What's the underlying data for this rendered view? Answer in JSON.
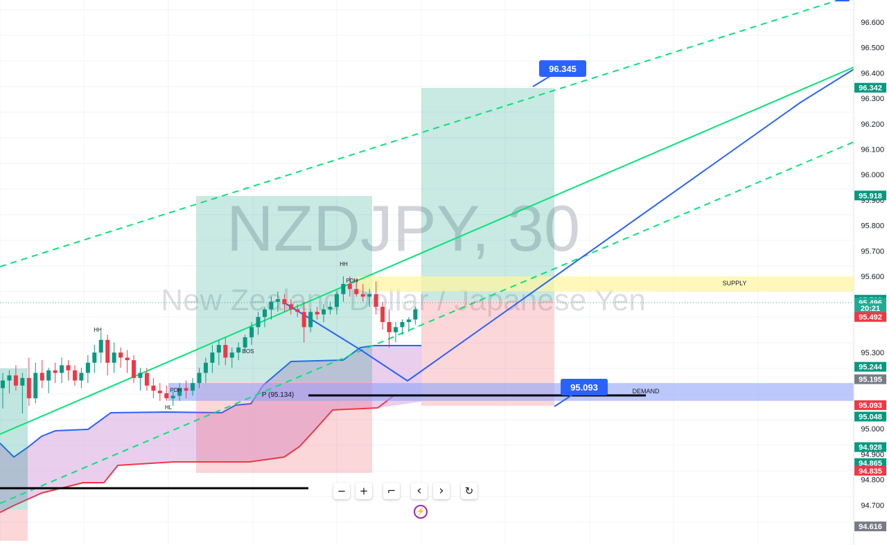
{
  "watermark": {
    "symbol": "NZDJPY, 30",
    "description": "New Zealand Dollar / Japanese Yen"
  },
  "chart_data": {
    "type": "candlestick",
    "symbol": "NZDJPY",
    "timeframe": "30",
    "ylim": [
      94.616,
      96.66
    ],
    "y_ticks": [
      "96.600",
      "96.500",
      "96.400",
      "96.300",
      "96.200",
      "96.100",
      "96.000",
      "95.900",
      "95.800",
      "95.700",
      "95.600",
      "95.300",
      "95.000",
      "94.900",
      "94.800",
      "94.700"
    ],
    "price_tags": [
      {
        "label": "96.342",
        "value": 96.342,
        "color": "#089981"
      },
      {
        "label": "95.918",
        "value": 95.918,
        "color": "#089981"
      },
      {
        "label": "95.508",
        "value": 95.508,
        "color": "#089981"
      },
      {
        "label": "95.496",
        "value": 95.496,
        "color": "#22ab94"
      },
      {
        "label": "20:21",
        "value": 95.474,
        "color": "#22ab94"
      },
      {
        "label": "95.492",
        "value": 95.44,
        "color": "#f23645"
      },
      {
        "label": "95.244",
        "value": 95.244,
        "color": "#089981"
      },
      {
        "label": "95.195",
        "value": 95.195,
        "color": "#787b86"
      },
      {
        "label": "95.093",
        "value": 95.093,
        "color": "#f23645"
      },
      {
        "label": "95.048",
        "value": 95.048,
        "color": "#089981"
      },
      {
        "label": "94.928",
        "value": 94.928,
        "color": "#089981"
      },
      {
        "label": "94.865",
        "value": 94.865,
        "color": "#089981"
      },
      {
        "label": "94.835",
        "value": 94.835,
        "color": "#f23645"
      },
      {
        "label": "94.616",
        "value": 94.616,
        "color": "#787b86"
      }
    ],
    "zones": [
      {
        "label": "SUPPLY",
        "from": 95.54,
        "to": 95.6,
        "color": "#fff59d"
      },
      {
        "label": "DEMAND",
        "from": 95.11,
        "to": 95.18,
        "color": "#90a4f8"
      }
    ],
    "callouts": [
      {
        "label": "96.345",
        "value": 96.345
      },
      {
        "label": "95.093",
        "value": 95.093
      }
    ],
    "annotations": [
      {
        "text": "HH",
        "value": 95.76
      },
      {
        "text": "HH",
        "value": 95.35
      },
      {
        "text": "PDH",
        "value": 95.6
      },
      {
        "text": "BOS",
        "value": 95.29
      },
      {
        "text": "PDH",
        "value": 95.16
      },
      {
        "text": "HL",
        "value": 95.09
      },
      {
        "text": "P (95.134)",
        "value": 95.134
      }
    ],
    "candles": [
      {
        "o": 95.16,
        "h": 95.22,
        "l": 95.08,
        "c": 95.19
      },
      {
        "o": 95.19,
        "h": 95.23,
        "l": 95.14,
        "c": 95.21
      },
      {
        "o": 95.21,
        "h": 95.25,
        "l": 95.15,
        "c": 95.17
      },
      {
        "o": 95.17,
        "h": 95.22,
        "l": 95.06,
        "c": 95.2
      },
      {
        "o": 95.2,
        "h": 95.28,
        "l": 95.09,
        "c": 95.12
      },
      {
        "o": 95.12,
        "h": 95.26,
        "l": 95.1,
        "c": 95.22
      },
      {
        "o": 95.22,
        "h": 95.27,
        "l": 95.16,
        "c": 95.19
      },
      {
        "o": 95.19,
        "h": 95.24,
        "l": 95.14,
        "c": 95.23
      },
      {
        "o": 95.23,
        "h": 95.26,
        "l": 95.18,
        "c": 95.22
      },
      {
        "o": 95.22,
        "h": 95.28,
        "l": 95.18,
        "c": 95.25
      },
      {
        "o": 95.25,
        "h": 95.27,
        "l": 95.19,
        "c": 95.23
      },
      {
        "o": 95.23,
        "h": 95.25,
        "l": 95.17,
        "c": 95.19
      },
      {
        "o": 95.19,
        "h": 95.24,
        "l": 95.16,
        "c": 95.22
      },
      {
        "o": 95.22,
        "h": 95.29,
        "l": 95.18,
        "c": 95.26
      },
      {
        "o": 95.26,
        "h": 95.33,
        "l": 95.22,
        "c": 95.3
      },
      {
        "o": 95.3,
        "h": 95.38,
        "l": 95.26,
        "c": 95.35
      },
      {
        "o": 95.35,
        "h": 95.37,
        "l": 95.21,
        "c": 95.26
      },
      {
        "o": 95.26,
        "h": 95.34,
        "l": 95.22,
        "c": 95.3
      },
      {
        "o": 95.3,
        "h": 95.32,
        "l": 95.24,
        "c": 95.28
      },
      {
        "o": 95.28,
        "h": 95.31,
        "l": 95.22,
        "c": 95.27
      },
      {
        "o": 95.27,
        "h": 95.29,
        "l": 95.18,
        "c": 95.2
      },
      {
        "o": 95.2,
        "h": 95.24,
        "l": 95.15,
        "c": 95.22
      },
      {
        "o": 95.22,
        "h": 95.24,
        "l": 95.15,
        "c": 95.17
      },
      {
        "o": 95.17,
        "h": 95.2,
        "l": 95.12,
        "c": 95.15
      },
      {
        "o": 95.15,
        "h": 95.18,
        "l": 95.11,
        "c": 95.14
      },
      {
        "o": 95.14,
        "h": 95.17,
        "l": 95.11,
        "c": 95.12
      },
      {
        "o": 95.12,
        "h": 95.15,
        "l": 95.09,
        "c": 95.13
      },
      {
        "o": 95.13,
        "h": 95.18,
        "l": 95.11,
        "c": 95.16
      },
      {
        "o": 95.16,
        "h": 95.19,
        "l": 95.12,
        "c": 95.15
      },
      {
        "o": 95.15,
        "h": 95.2,
        "l": 95.13,
        "c": 95.18
      },
      {
        "o": 95.18,
        "h": 95.24,
        "l": 95.16,
        "c": 95.22
      },
      {
        "o": 95.22,
        "h": 95.28,
        "l": 95.18,
        "c": 95.26
      },
      {
        "o": 95.26,
        "h": 95.33,
        "l": 95.22,
        "c": 95.3
      },
      {
        "o": 95.3,
        "h": 95.35,
        "l": 95.25,
        "c": 95.33
      },
      {
        "o": 95.33,
        "h": 95.36,
        "l": 95.25,
        "c": 95.28
      },
      {
        "o": 95.28,
        "h": 95.32,
        "l": 95.24,
        "c": 95.3
      },
      {
        "o": 95.3,
        "h": 95.34,
        "l": 95.27,
        "c": 95.32
      },
      {
        "o": 95.32,
        "h": 95.37,
        "l": 95.3,
        "c": 95.36
      },
      {
        "o": 95.36,
        "h": 95.42,
        "l": 95.33,
        "c": 95.4
      },
      {
        "o": 95.4,
        "h": 95.46,
        "l": 95.37,
        "c": 95.44
      },
      {
        "o": 95.44,
        "h": 95.48,
        "l": 95.4,
        "c": 95.47
      },
      {
        "o": 95.47,
        "h": 95.52,
        "l": 95.43,
        "c": 95.5
      },
      {
        "o": 95.5,
        "h": 95.54,
        "l": 95.46,
        "c": 95.51
      },
      {
        "o": 95.51,
        "h": 95.53,
        "l": 95.46,
        "c": 95.49
      },
      {
        "o": 95.49,
        "h": 95.51,
        "l": 95.45,
        "c": 95.47
      },
      {
        "o": 95.47,
        "h": 95.49,
        "l": 95.44,
        "c": 95.46
      },
      {
        "o": 95.46,
        "h": 95.5,
        "l": 95.34,
        "c": 95.4
      },
      {
        "o": 95.4,
        "h": 95.47,
        "l": 95.38,
        "c": 95.46
      },
      {
        "o": 95.46,
        "h": 95.48,
        "l": 95.43,
        "c": 95.45
      },
      {
        "o": 95.45,
        "h": 95.49,
        "l": 95.42,
        "c": 95.47
      },
      {
        "o": 95.47,
        "h": 95.5,
        "l": 95.45,
        "c": 95.48
      },
      {
        "o": 95.48,
        "h": 95.54,
        "l": 95.45,
        "c": 95.53
      },
      {
        "o": 95.53,
        "h": 95.6,
        "l": 95.5,
        "c": 95.57
      },
      {
        "o": 95.57,
        "h": 95.6,
        "l": 95.52,
        "c": 95.55
      },
      {
        "o": 95.55,
        "h": 95.59,
        "l": 95.52,
        "c": 95.53
      },
      {
        "o": 95.53,
        "h": 95.57,
        "l": 95.5,
        "c": 95.52
      },
      {
        "o": 95.52,
        "h": 95.55,
        "l": 95.48,
        "c": 95.53
      },
      {
        "o": 95.53,
        "h": 95.58,
        "l": 95.45,
        "c": 95.48
      },
      {
        "o": 95.48,
        "h": 95.5,
        "l": 95.39,
        "c": 95.42
      },
      {
        "o": 95.42,
        "h": 95.47,
        "l": 95.32,
        "c": 95.38
      },
      {
        "o": 95.38,
        "h": 95.42,
        "l": 95.34,
        "c": 95.4
      },
      {
        "o": 95.4,
        "h": 95.43,
        "l": 95.37,
        "c": 95.42
      },
      {
        "o": 95.42,
        "h": 95.44,
        "l": 95.38,
        "c": 95.43
      },
      {
        "o": 95.43,
        "h": 95.48,
        "l": 95.41,
        "c": 95.47
      }
    ]
  },
  "toolbar": {
    "zoom_out": "−",
    "zoom_in": "+",
    "reset_scale": "⌐",
    "scroll_left": "‹",
    "scroll_right": "›",
    "reset": "↻"
  }
}
